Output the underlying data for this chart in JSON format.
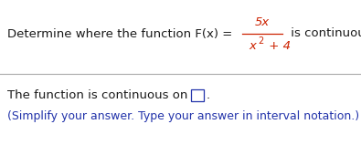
{
  "bg_color": "#ffffff",
  "text_color_black": "#1a1a1a",
  "text_color_blue": "#2233aa",
  "text_color_red": "#cc2200",
  "fig_width": 3.95,
  "fig_height": 1.59,
  "dpi": 100,
  "prefix": "Determine where the function F(x) = ",
  "suffix": " is continuous.",
  "numerator": "5x",
  "denom_x": "x",
  "denom_exp": "2",
  "denom_plus": " + 4",
  "bottom1": "The function is continuous on",
  "bottom2": "(Simplify your answer. Type your answer in interval notation.)",
  "divider_color": "#aaaaaa"
}
